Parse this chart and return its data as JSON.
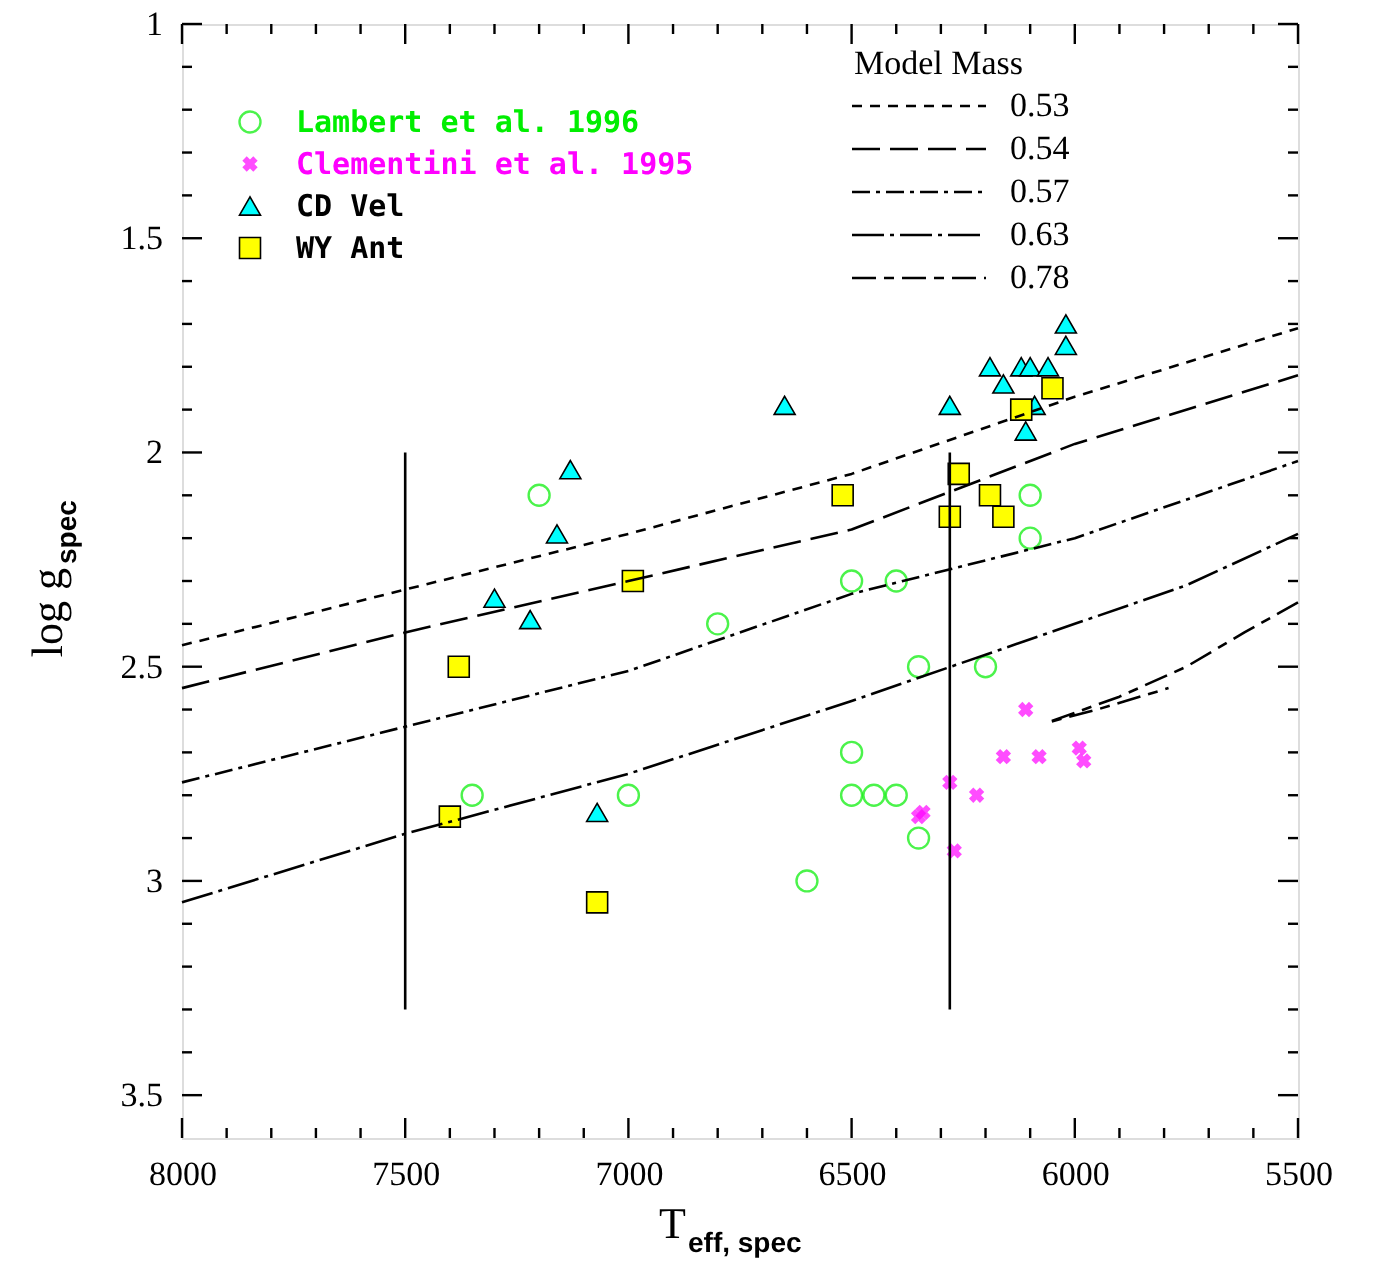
{
  "chart_data": {
    "type": "scatter",
    "xlabel": "T$_{eff, spec}$",
    "ylabel": "log g$_{spec}$",
    "legend_title": "Model Mass",
    "legend": "top left",
    "xlim": [
      8000,
      5500
    ],
    "ylim": [
      3.6,
      1
    ],
    "xticks": [
      8000,
      {
        "value": 7900,
        "label": null
      },
      {
        "value": 7800,
        "label": null
      },
      {
        "value": 7700,
        "label": null
      },
      {
        "value": 7600,
        "label": null
      },
      7500,
      {
        "value": 7400,
        "label": null
      },
      {
        "value": 7300,
        "label": null
      },
      {
        "value": 7200,
        "label": null
      },
      {
        "value": 7100,
        "label": null
      },
      7000,
      {
        "value": 6900,
        "label": null
      },
      {
        "value": 6800,
        "label": null
      },
      {
        "value": 6700,
        "label": null
      },
      {
        "value": 6600,
        "label": null
      },
      6500,
      {
        "value": 6400,
        "label": null
      },
      {
        "value": 6300,
        "label": null
      },
      {
        "value": 6200,
        "label": null
      },
      {
        "value": 6100,
        "label": null
      },
      6000,
      {
        "value": 5900,
        "label": null
      },
      {
        "value": 5800,
        "label": null
      },
      {
        "value": 5700,
        "label": null
      },
      {
        "value": 5600,
        "label": null
      },
      5500
    ],
    "yticks": [
      1,
      {
        "value": 1.1,
        "label": null
      },
      {
        "value": 1.2,
        "label": null
      },
      {
        "value": 1.3,
        "label": null
      },
      {
        "value": 1.4,
        "label": null
      },
      1.5,
      {
        "value": 1.6,
        "label": null
      },
      {
        "value": 1.7,
        "label": null
      },
      {
        "value": 1.8,
        "label": null
      },
      {
        "value": 1.9,
        "label": null
      },
      2,
      {
        "value": 2.1,
        "label": null
      },
      {
        "value": 2.2,
        "label": null
      },
      {
        "value": 2.3,
        "label": null
      },
      {
        "value": 2.4,
        "label": null
      },
      2.5,
      {
        "value": 2.6,
        "label": null
      },
      {
        "value": 2.7,
        "label": null
      },
      {
        "value": 2.8,
        "label": null
      },
      {
        "value": 2.9,
        "label": null
      },
      3,
      {
        "value": 3.1,
        "label": null
      },
      {
        "value": 3.2,
        "label": null
      },
      {
        "value": 3.3,
        "label": null
      },
      {
        "value": 3.4,
        "label": null
      },
      3.5
    ],
    "series": [
      {
        "name": "Lambert et al. 1996",
        "marker": "circle",
        "color": "#00ee00",
        "x": [
          7200,
          7350,
          7000,
          6800,
          6500,
          6400,
          6350,
          6200,
          6100,
          6100,
          6500,
          6500,
          6450,
          6400,
          6350,
          6600
        ],
        "values": [
          2.1,
          2.8,
          2.8,
          2.4,
          2.3,
          2.3,
          2.5,
          2.5,
          2.1,
          2.2,
          2.7,
          2.8,
          2.8,
          2.8,
          2.9,
          3.0
        ]
      },
      {
        "name": "Clementini et al. 1995",
        "marker": "cross",
        "color": "#ff00ff",
        "x": [
          6110,
          6160,
          6080,
          5990,
          5980,
          6280,
          6220,
          6350,
          6340,
          6270
        ],
        "values": [
          2.6,
          2.71,
          2.71,
          2.69,
          2.72,
          2.77,
          2.8,
          2.85,
          2.84,
          2.93
        ]
      },
      {
        "name": "CD Vel",
        "marker": "triangle",
        "color": "#00ffff",
        "x": [
          7130,
          7160,
          7300,
          7220,
          7070,
          6650,
          6280,
          6190,
          6160,
          6120,
          6100,
          6060,
          6090,
          6110,
          6020,
          6020
        ],
        "values": [
          2.04,
          2.19,
          2.34,
          2.39,
          2.84,
          1.89,
          1.89,
          1.8,
          1.84,
          1.8,
          1.8,
          1.8,
          1.89,
          1.95,
          1.7,
          1.75
        ]
      },
      {
        "name": "WY Ant",
        "marker": "square",
        "color": "#ffff00",
        "x": [
          6990,
          7380,
          7400,
          7070,
          6520,
          6260,
          6280,
          6190,
          6160,
          6120,
          6050
        ],
        "values": [
          2.3,
          2.5,
          2.85,
          3.05,
          2.1,
          2.05,
          2.15,
          2.1,
          2.15,
          1.9,
          1.85
        ]
      },
      {
        "name": "0.53",
        "type": "line",
        "marker": "none",
        "line_style": "dashed",
        "color": "#000000",
        "x": [
          8000,
          7500,
          7000,
          6500,
          6000,
          5500
        ],
        "values": [
          2.45,
          2.32,
          2.19,
          2.05,
          1.87,
          1.71
        ]
      },
      {
        "name": "0.54",
        "type": "line",
        "marker": "none",
        "line_style": "dashed",
        "color": "#000000",
        "x": [
          8000,
          7500,
          7000,
          6500,
          6000,
          5500
        ],
        "values": [
          2.55,
          2.42,
          2.3,
          2.18,
          1.98,
          1.82
        ]
      },
      {
        "name": "0.57",
        "type": "line",
        "marker": "none",
        "line_style": "dashed",
        "color": "#000000",
        "x": [
          8000,
          7500,
          7000,
          6500,
          6000,
          5500
        ],
        "values": [
          2.77,
          2.64,
          2.51,
          2.33,
          2.2,
          2.02
        ]
      },
      {
        "name": "0.63",
        "type": "line",
        "marker": "none",
        "line_style": "dashed",
        "color": "#000000",
        "x": [
          8000,
          7500,
          7000,
          6500,
          6000,
          5750,
          5500
        ],
        "values": [
          3.05,
          2.89,
          2.75,
          2.58,
          2.4,
          2.31,
          2.19
        ]
      },
      {
        "name": "0.78",
        "type": "line",
        "marker": "none",
        "line_style": "dashed",
        "color": "#000000",
        "x": [
          5500,
          5620,
          5750,
          5900,
          6060,
          5950,
          5790
        ],
        "values": [
          2.35,
          2.42,
          2.5,
          2.57,
          2.63,
          2.6,
          2.55
        ]
      },
      {
        "type": "line",
        "marker": "none",
        "line_style": "solid",
        "color": "#000000",
        "x": [
          7500,
          7500
        ],
        "values": [
          2.0,
          3.3
        ]
      },
      {
        "type": "line",
        "marker": "none",
        "line_style": "solid",
        "color": "#000000",
        "x": [
          6280,
          6280
        ],
        "values": [
          2.0,
          3.3
        ]
      }
    ]
  }
}
